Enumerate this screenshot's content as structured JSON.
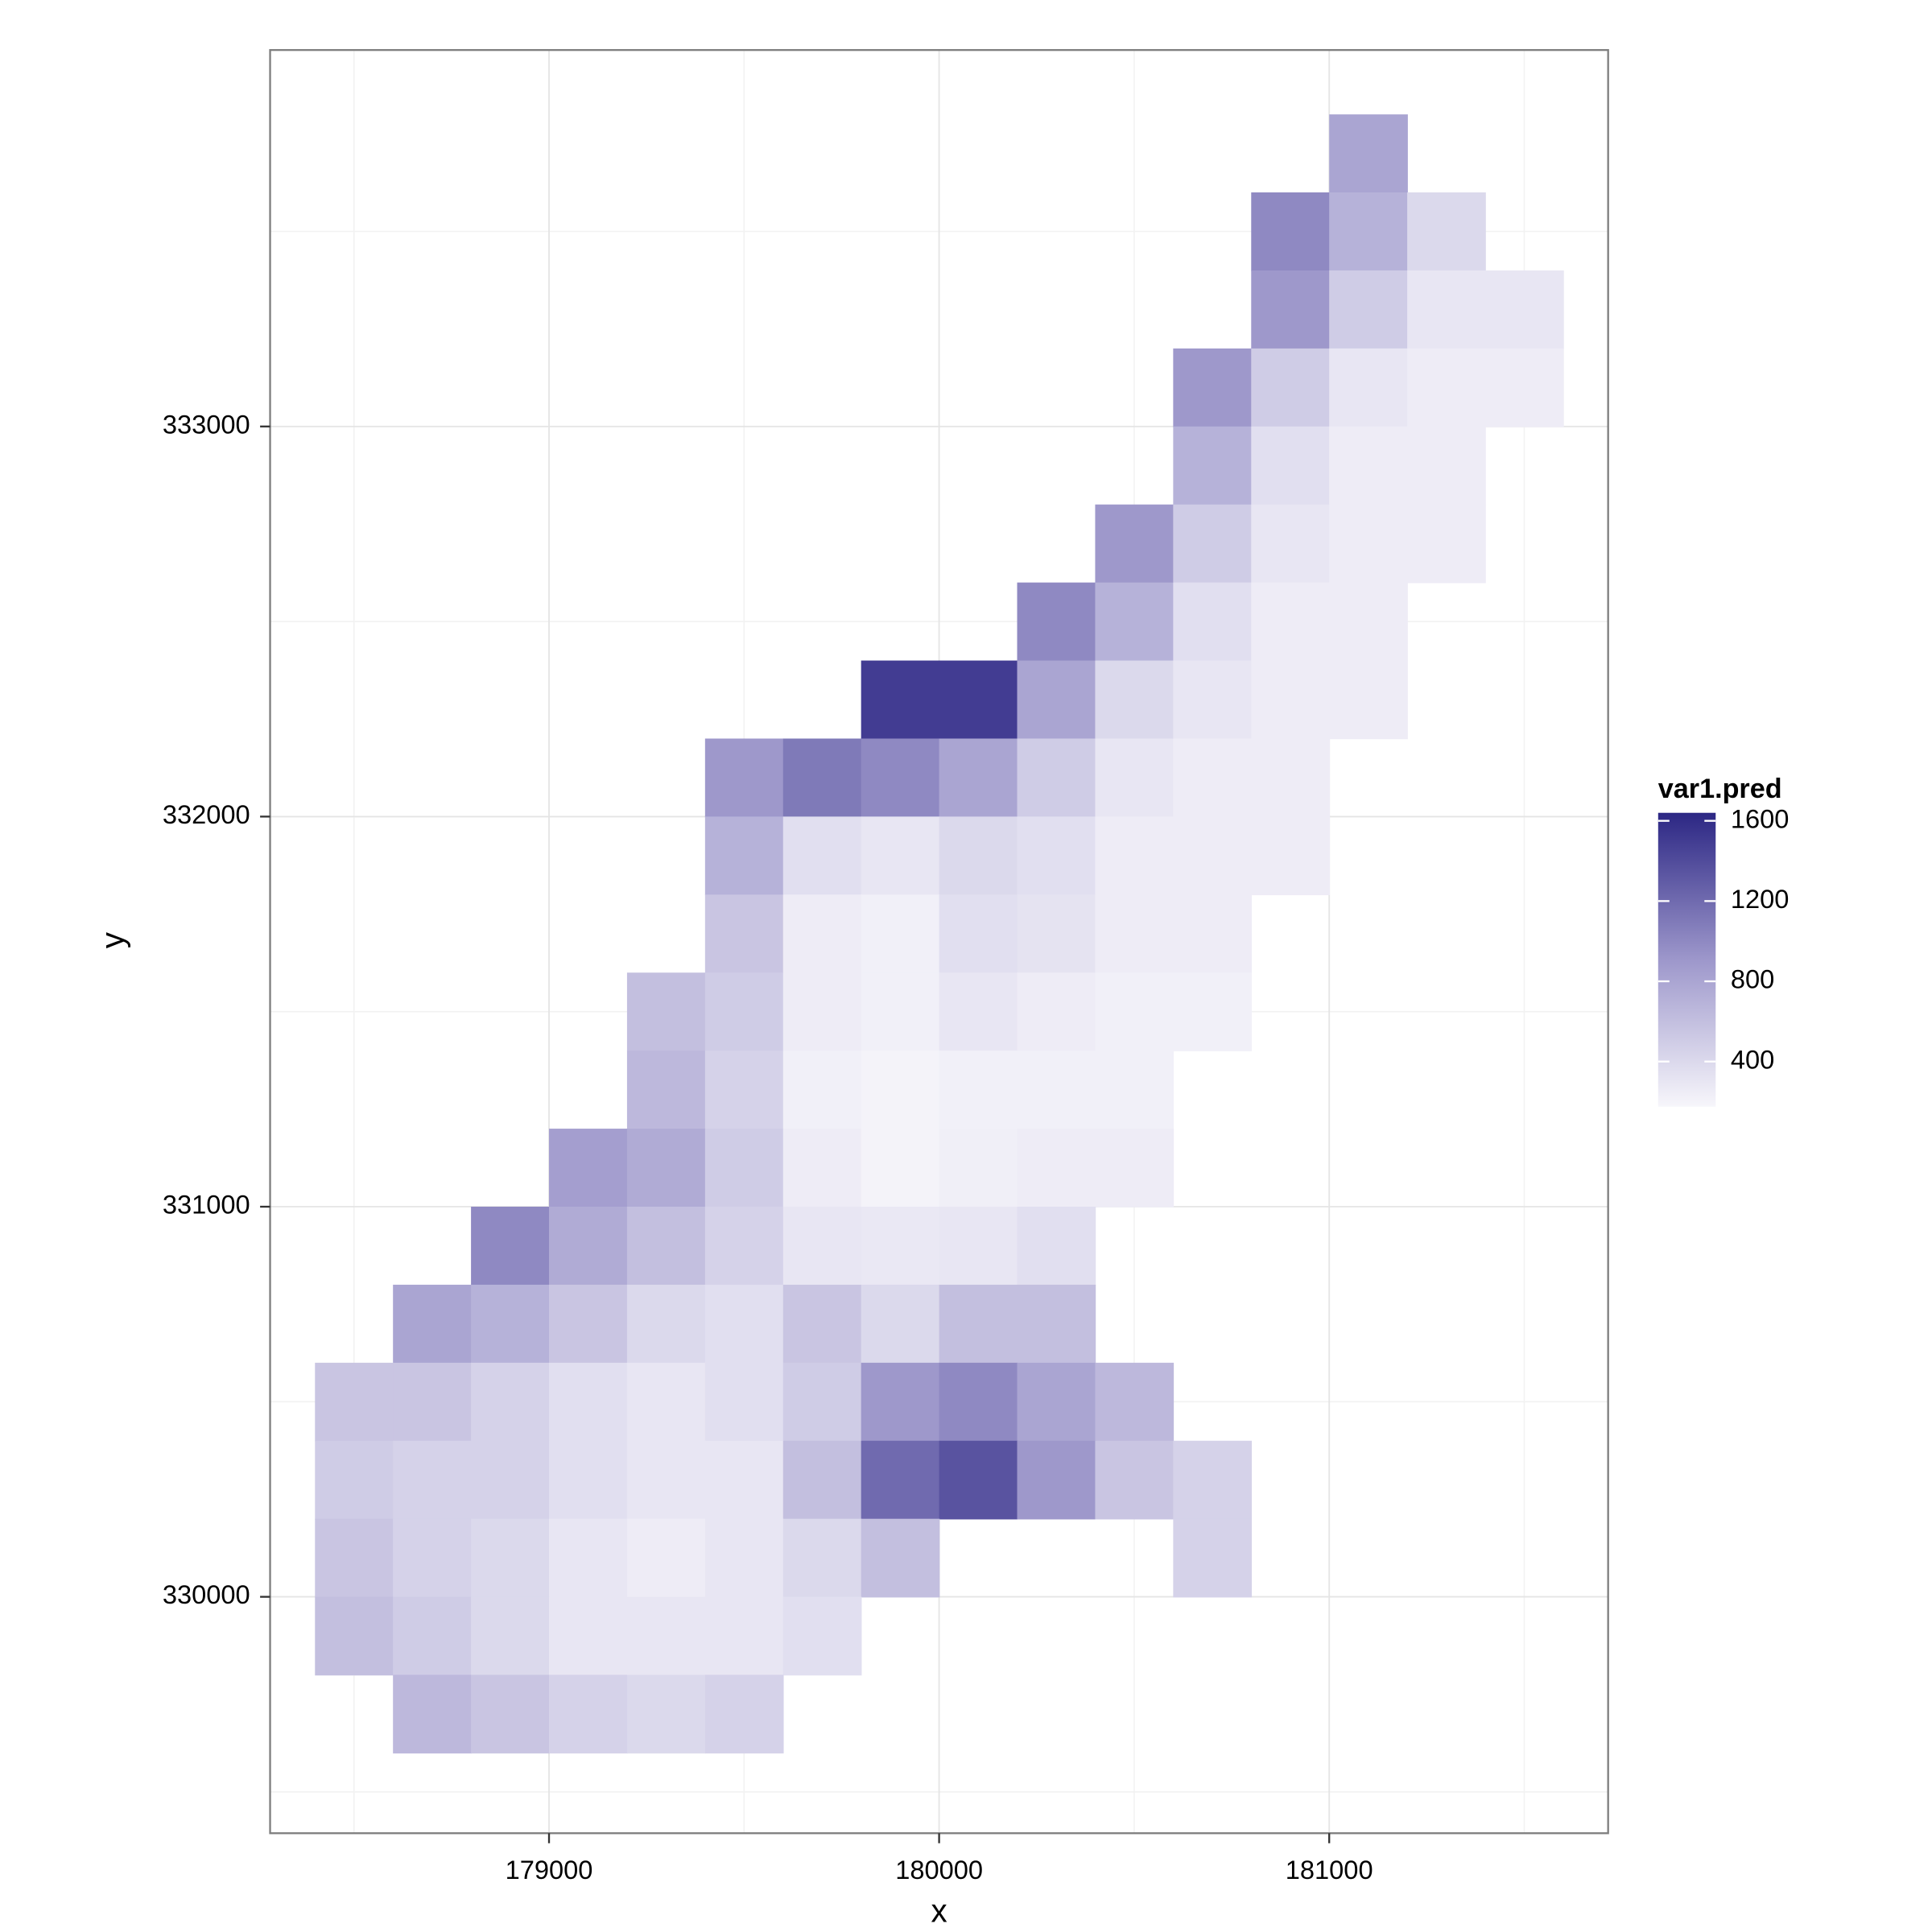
{
  "chart_data": {
    "type": "heatmap",
    "x_label": "x",
    "y_label": "y",
    "legend_title": "var1.pred",
    "xlim": [
      178285,
      181715
    ],
    "ylim": [
      329394,
      333965
    ],
    "xticks": [
      179000,
      180000,
      181000
    ],
    "yticks": [
      330000,
      331000,
      332000,
      333000
    ],
    "x_minor_grid": [
      178500,
      179500,
      180500,
      181500
    ],
    "y_minor_grid": [
      329500,
      330500,
      331500,
      332500,
      333500
    ],
    "grid": true,
    "legend_position": "right",
    "colorbar_lim": [
      175,
      1640
    ],
    "colorbar_ticks": [
      400,
      800,
      1200,
      1600
    ],
    "colors": [
      "#f7f6fb",
      "#9d97cb",
      "#2c2784"
    ],
    "x": [
      178500,
      178700,
      178900,
      179100,
      179300,
      179500,
      179700,
      179900,
      180100,
      180300,
      180500,
      180700,
      180900,
      181100,
      181300,
      181500
    ],
    "y": [
      333700,
      333500,
      333300,
      333100,
      332900,
      332700,
      332500,
      332300,
      332100,
      331900,
      331700,
      331500,
      331300,
      331100,
      330900,
      330700,
      330500,
      330300,
      330100,
      329900,
      329700
    ],
    "values": [
      [
        null,
        null,
        null,
        null,
        null,
        null,
        null,
        null,
        null,
        null,
        null,
        null,
        null,
        800,
        null,
        null
      ],
      [
        null,
        null,
        null,
        null,
        null,
        null,
        null,
        null,
        null,
        null,
        null,
        null,
        1000,
        700,
        400,
        null
      ],
      [
        null,
        null,
        null,
        null,
        null,
        null,
        null,
        null,
        null,
        null,
        null,
        null,
        900,
        500,
        300,
        300
      ],
      [
        null,
        null,
        null,
        null,
        null,
        null,
        null,
        null,
        null,
        null,
        null,
        900,
        500,
        300,
        250,
        250
      ],
      [
        null,
        null,
        null,
        null,
        null,
        null,
        null,
        null,
        null,
        null,
        null,
        700,
        350,
        250,
        250,
        null
      ],
      [
        null,
        null,
        null,
        null,
        null,
        null,
        null,
        null,
        null,
        null,
        900,
        500,
        300,
        250,
        250,
        null
      ],
      [
        null,
        null,
        null,
        null,
        null,
        null,
        null,
        null,
        null,
        1000,
        700,
        350,
        250,
        250,
        null,
        null
      ],
      [
        null,
        null,
        null,
        null,
        null,
        null,
        null,
        1500,
        1500,
        800,
        400,
        300,
        250,
        250,
        null,
        null
      ],
      [
        null,
        null,
        null,
        null,
        null,
        900,
        1100,
        1000,
        800,
        500,
        300,
        250,
        250,
        null,
        null,
        null
      ],
      [
        null,
        null,
        null,
        null,
        null,
        700,
        350,
        300,
        400,
        350,
        250,
        250,
        250,
        null,
        null,
        null
      ],
      [
        null,
        null,
        null,
        null,
        null,
        550,
        250,
        220,
        350,
        320,
        250,
        250,
        null,
        null,
        null,
        null
      ],
      [
        null,
        null,
        null,
        null,
        600,
        500,
        250,
        220,
        300,
        250,
        220,
        220,
        null,
        null,
        null,
        null
      ],
      [
        null,
        null,
        null,
        null,
        650,
        450,
        220,
        200,
        220,
        220,
        220,
        null,
        null,
        null,
        null,
        null
      ],
      [
        null,
        null,
        null,
        850,
        750,
        500,
        250,
        200,
        230,
        250,
        250,
        null,
        null,
        null,
        null,
        null
      ],
      [
        null,
        null,
        1000,
        750,
        600,
        450,
        300,
        280,
        300,
        350,
        null,
        null,
        null,
        null,
        null,
        null
      ],
      [
        null,
        800,
        700,
        550,
        400,
        350,
        550,
        400,
        600,
        600,
        null,
        null,
        null,
        null,
        null,
        null
      ],
      [
        550,
        550,
        450,
        350,
        300,
        350,
        500,
        900,
        1000,
        800,
        650,
        null,
        null,
        null,
        null,
        null
      ],
      [
        500,
        450,
        450,
        350,
        300,
        300,
        600,
        1200,
        1350,
        900,
        550,
        450,
        null,
        null,
        null,
        null
      ],
      [
        550,
        450,
        400,
        300,
        250,
        300,
        400,
        600,
        null,
        null,
        null,
        450,
        null,
        null,
        null,
        null
      ],
      [
        600,
        500,
        400,
        300,
        300,
        300,
        350,
        null,
        null,
        null,
        null,
        null,
        null,
        null,
        null,
        null
      ],
      [
        null,
        650,
        550,
        450,
        400,
        450,
        null,
        null,
        null,
        null,
        null,
        null,
        null,
        null,
        null,
        null
      ]
    ]
  }
}
